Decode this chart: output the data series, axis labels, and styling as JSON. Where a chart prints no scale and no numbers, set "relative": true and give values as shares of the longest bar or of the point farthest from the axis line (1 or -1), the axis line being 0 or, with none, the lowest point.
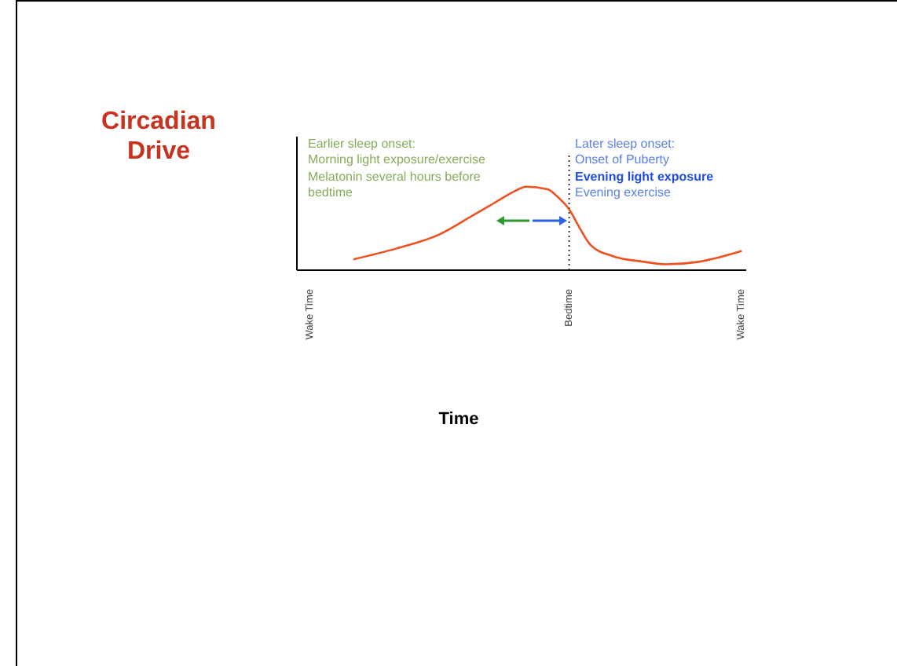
{
  "chart_data": {
    "type": "line",
    "title": "Circadian Drive",
    "xlabel": "Time",
    "relative": true,
    "categories": [
      "Wake Time",
      null,
      null,
      null,
      null,
      null,
      null,
      null,
      null,
      null,
      null,
      null,
      null,
      null,
      null,
      null,
      null,
      null,
      null,
      null,
      null,
      null,
      null,
      null,
      "Bedtime",
      null,
      null,
      null,
      null,
      null,
      null,
      null,
      null,
      null,
      null,
      null,
      null,
      null,
      null,
      null,
      "Wake Time"
    ],
    "series": [
      {
        "color": "#f0501e",
        "values": [
          null,
          null,
          null,
          null,
          0.13,
          null,
          null,
          null,
          0.26,
          null,
          null,
          null,
          0.43,
          null,
          null,
          0.65,
          null,
          0.8,
          null,
          0.95,
          1,
          null,
          0.97,
          0.87,
          0.73,
          0.5,
          0.3,
          null,
          0.17,
          null,
          null,
          0.1,
          null,
          0.07,
          null,
          null,
          0.1,
          null,
          null,
          null,
          0.23
        ]
      }
    ],
    "ref_lines": [
      {
        "axis": "x",
        "value": "Bedtime",
        "color": "#333333",
        "line_style": "dotted"
      }
    ],
    "annotations": [
      "Earlier sleep onset:",
      "Morning light exposure/exercise",
      "Melatonin several hours before bedtime",
      "Later sleep onset:",
      "Onset of Puberty",
      "Evening light exposure",
      "Evening exercise"
    ]
  }
}
